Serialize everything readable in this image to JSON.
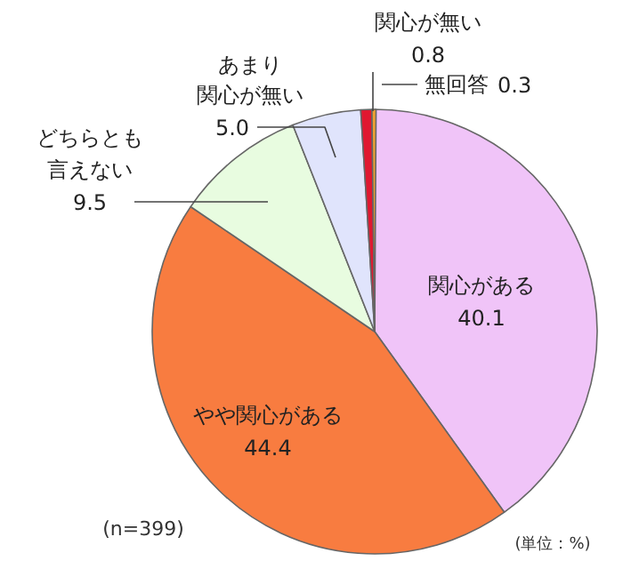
{
  "chart_data": {
    "type": "pie",
    "categories": [
      "関心がある",
      "やや関心がある",
      "どちらとも言えない",
      "あまり関心が無い",
      "関心が無い",
      "無回答"
    ],
    "values": [
      40.1,
      44.4,
      9.5,
      5.0,
      0.8,
      0.3
    ],
    "colors": [
      "#f0c4f8",
      "#f87c40",
      "#e8fce0",
      "#e0e4fc",
      "#e01830",
      "#f0a030"
    ],
    "value_labels": [
      "40.1",
      "44.4",
      "9.5",
      "5.0",
      "0.8",
      "0.3"
    ],
    "annotations": [
      "(n=399)",
      "(単位：%)"
    ]
  }
}
